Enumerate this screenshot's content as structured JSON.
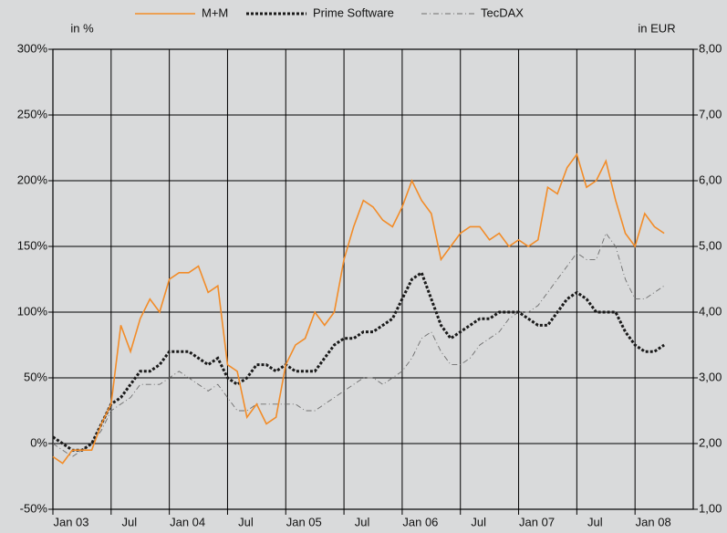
{
  "chart_data": {
    "type": "line",
    "y_label": "in %",
    "y2_label": "in EUR",
    "categories": [
      "Jan 03",
      null,
      null,
      null,
      null,
      null,
      "Jul",
      null,
      null,
      null,
      null,
      null,
      "Jan 04",
      null,
      null,
      null,
      null,
      null,
      "Jul",
      null,
      null,
      null,
      null,
      null,
      "Jan 05",
      null,
      null,
      null,
      null,
      null,
      "Jul",
      null,
      null,
      null,
      null,
      null,
      "Jan 06",
      null,
      null,
      null,
      null,
      null,
      "Jul",
      null,
      null,
      null,
      null,
      null,
      "Jan 07",
      null,
      null,
      null,
      null,
      null,
      "Jul",
      null,
      null,
      null,
      null,
      null,
      "Jan 08",
      null,
      null,
      null,
      null,
      null
    ],
    "series": [
      {
        "name": "M+M",
        "color": "#f28c28",
        "style": "solid",
        "values": [
          -10,
          -15,
          -5,
          -5,
          -5,
          15,
          30,
          90,
          70,
          95,
          110,
          100,
          125,
          130,
          130,
          135,
          115,
          120,
          60,
          55,
          20,
          30,
          15,
          20,
          60,
          75,
          80,
          100,
          90,
          100,
          140,
          165,
          185,
          180,
          170,
          165,
          180,
          200,
          185,
          175,
          140,
          150,
          160,
          165,
          165,
          155,
          160,
          150,
          155,
          150,
          155,
          195,
          190,
          210,
          220,
          195,
          200,
          215,
          185,
          160,
          150,
          175,
          165,
          160,
          null,
          null
        ]
      },
      {
        "name": "Prime Software",
        "color": "#1a1a1a",
        "style": "dotted",
        "values": [
          5,
          0,
          -5,
          -5,
          0,
          15,
          30,
          35,
          45,
          55,
          55,
          60,
          70,
          70,
          70,
          65,
          60,
          65,
          50,
          45,
          50,
          60,
          60,
          55,
          60,
          55,
          55,
          55,
          65,
          75,
          80,
          80,
          85,
          85,
          90,
          95,
          110,
          125,
          130,
          110,
          90,
          80,
          85,
          90,
          95,
          95,
          100,
          100,
          100,
          95,
          90,
          90,
          100,
          110,
          115,
          110,
          100,
          100,
          100,
          85,
          75,
          70,
          70,
          75,
          null,
          null
        ]
      },
      {
        "name": "TecDAX",
        "color": "#6e6e6e",
        "style": "dashdot",
        "values": [
          0,
          -5,
          -10,
          -5,
          0,
          10,
          25,
          30,
          35,
          45,
          45,
          45,
          50,
          55,
          50,
          45,
          40,
          45,
          35,
          25,
          25,
          30,
          30,
          30,
          30,
          30,
          25,
          25,
          30,
          35,
          40,
          45,
          50,
          50,
          45,
          50,
          55,
          65,
          80,
          85,
          70,
          60,
          60,
          65,
          75,
          80,
          85,
          95,
          100,
          100,
          105,
          115,
          125,
          135,
          145,
          140,
          140,
          160,
          150,
          125,
          110,
          110,
          115,
          120,
          null,
          null
        ]
      }
    ],
    "ylim": [
      -50,
      300
    ],
    "yticks": [
      {
        "value": -50,
        "label": "-50%"
      },
      {
        "value": 0,
        "label": "0%"
      },
      {
        "value": 50,
        "label": "50%"
      },
      {
        "value": 100,
        "label": "100%"
      },
      {
        "value": 150,
        "label": "150%"
      },
      {
        "value": 200,
        "label": "200%"
      },
      {
        "value": 250,
        "label": "250%"
      },
      {
        "value": 300,
        "label": "300%"
      }
    ],
    "y2lim": [
      1,
      8
    ],
    "y2ticks": [
      {
        "value": 1,
        "label": "1,00"
      },
      {
        "value": 2,
        "label": "2,00"
      },
      {
        "value": 3,
        "label": "3,00"
      },
      {
        "value": 4,
        "label": "4,00"
      },
      {
        "value": 5,
        "label": "5,00"
      },
      {
        "value": 6,
        "label": "6,00"
      },
      {
        "value": 7,
        "label": "7,00"
      },
      {
        "value": 8,
        "label": "8,00"
      }
    ],
    "grid": true,
    "legend": "top"
  }
}
